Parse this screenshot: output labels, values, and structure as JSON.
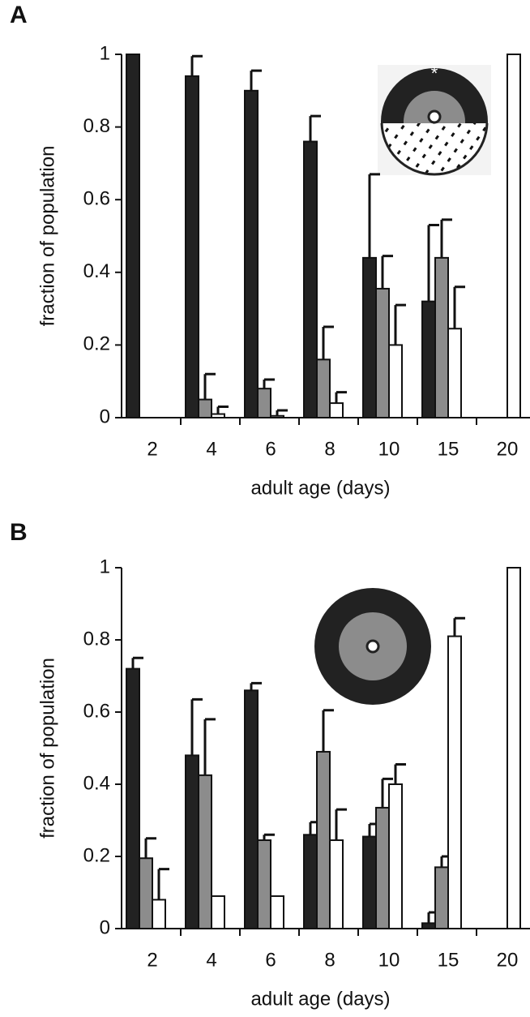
{
  "chart_data": [
    {
      "type": "bar",
      "panel": "A",
      "inset_mark": "*",
      "xlabel": "adult age (days)",
      "ylabel": "fraction of population",
      "categories": [
        "2",
        "4",
        "6",
        "8",
        "10",
        "15",
        "20"
      ],
      "series": [
        {
          "color": "#222222",
          "values": [
            1.0,
            0.94,
            0.9,
            0.76,
            0.44,
            0.32,
            0
          ],
          "error": [
            null,
            0.055,
            0.055,
            0.07,
            0.23,
            0.21,
            null
          ]
        },
        {
          "color": "#8c8c8c",
          "values": [
            0,
            0.05,
            0.08,
            0.16,
            0.355,
            0.44,
            0
          ],
          "error": [
            null,
            0.07,
            0.025,
            0.09,
            0.09,
            0.105,
            null
          ]
        },
        {
          "color": "#ffffff",
          "values": [
            0,
            0.01,
            0.005,
            0.04,
            0.2,
            0.245,
            1.0
          ],
          "error": [
            null,
            0.02,
            0.015,
            0.03,
            0.11,
            0.115,
            null
          ]
        }
      ],
      "ylim": [
        0,
        1
      ],
      "yticks": [
        0,
        0.2,
        0.4,
        0.6,
        0.8,
        1
      ]
    },
    {
      "type": "bar",
      "panel": "B",
      "xlabel": "adult age (days)",
      "ylabel": "fraction of population",
      "categories": [
        "2",
        "4",
        "6",
        "8",
        "10",
        "15",
        "20"
      ],
      "series": [
        {
          "color": "#222222",
          "values": [
            0.72,
            0.48,
            0.66,
            0.26,
            0.255,
            0.015,
            0
          ],
          "error": [
            0.03,
            0.155,
            0.02,
            0.035,
            0.035,
            0.03,
            null
          ]
        },
        {
          "color": "#8c8c8c",
          "values": [
            0.195,
            0.425,
            0.245,
            0.49,
            0.335,
            0.17,
            0
          ],
          "error": [
            0.055,
            0.155,
            0.015,
            0.115,
            0.08,
            0.03,
            null
          ]
        },
        {
          "color": "#ffffff",
          "values": [
            0.08,
            0.09,
            0.09,
            0.245,
            0.4,
            0.81,
            1.0
          ],
          "error": [
            0.085,
            null,
            null,
            0.085,
            0.055,
            0.05,
            null
          ]
        }
      ],
      "ylim": [
        0,
        1
      ],
      "yticks": [
        0,
        0.2,
        0.4,
        0.6,
        0.8,
        1
      ]
    }
  ]
}
